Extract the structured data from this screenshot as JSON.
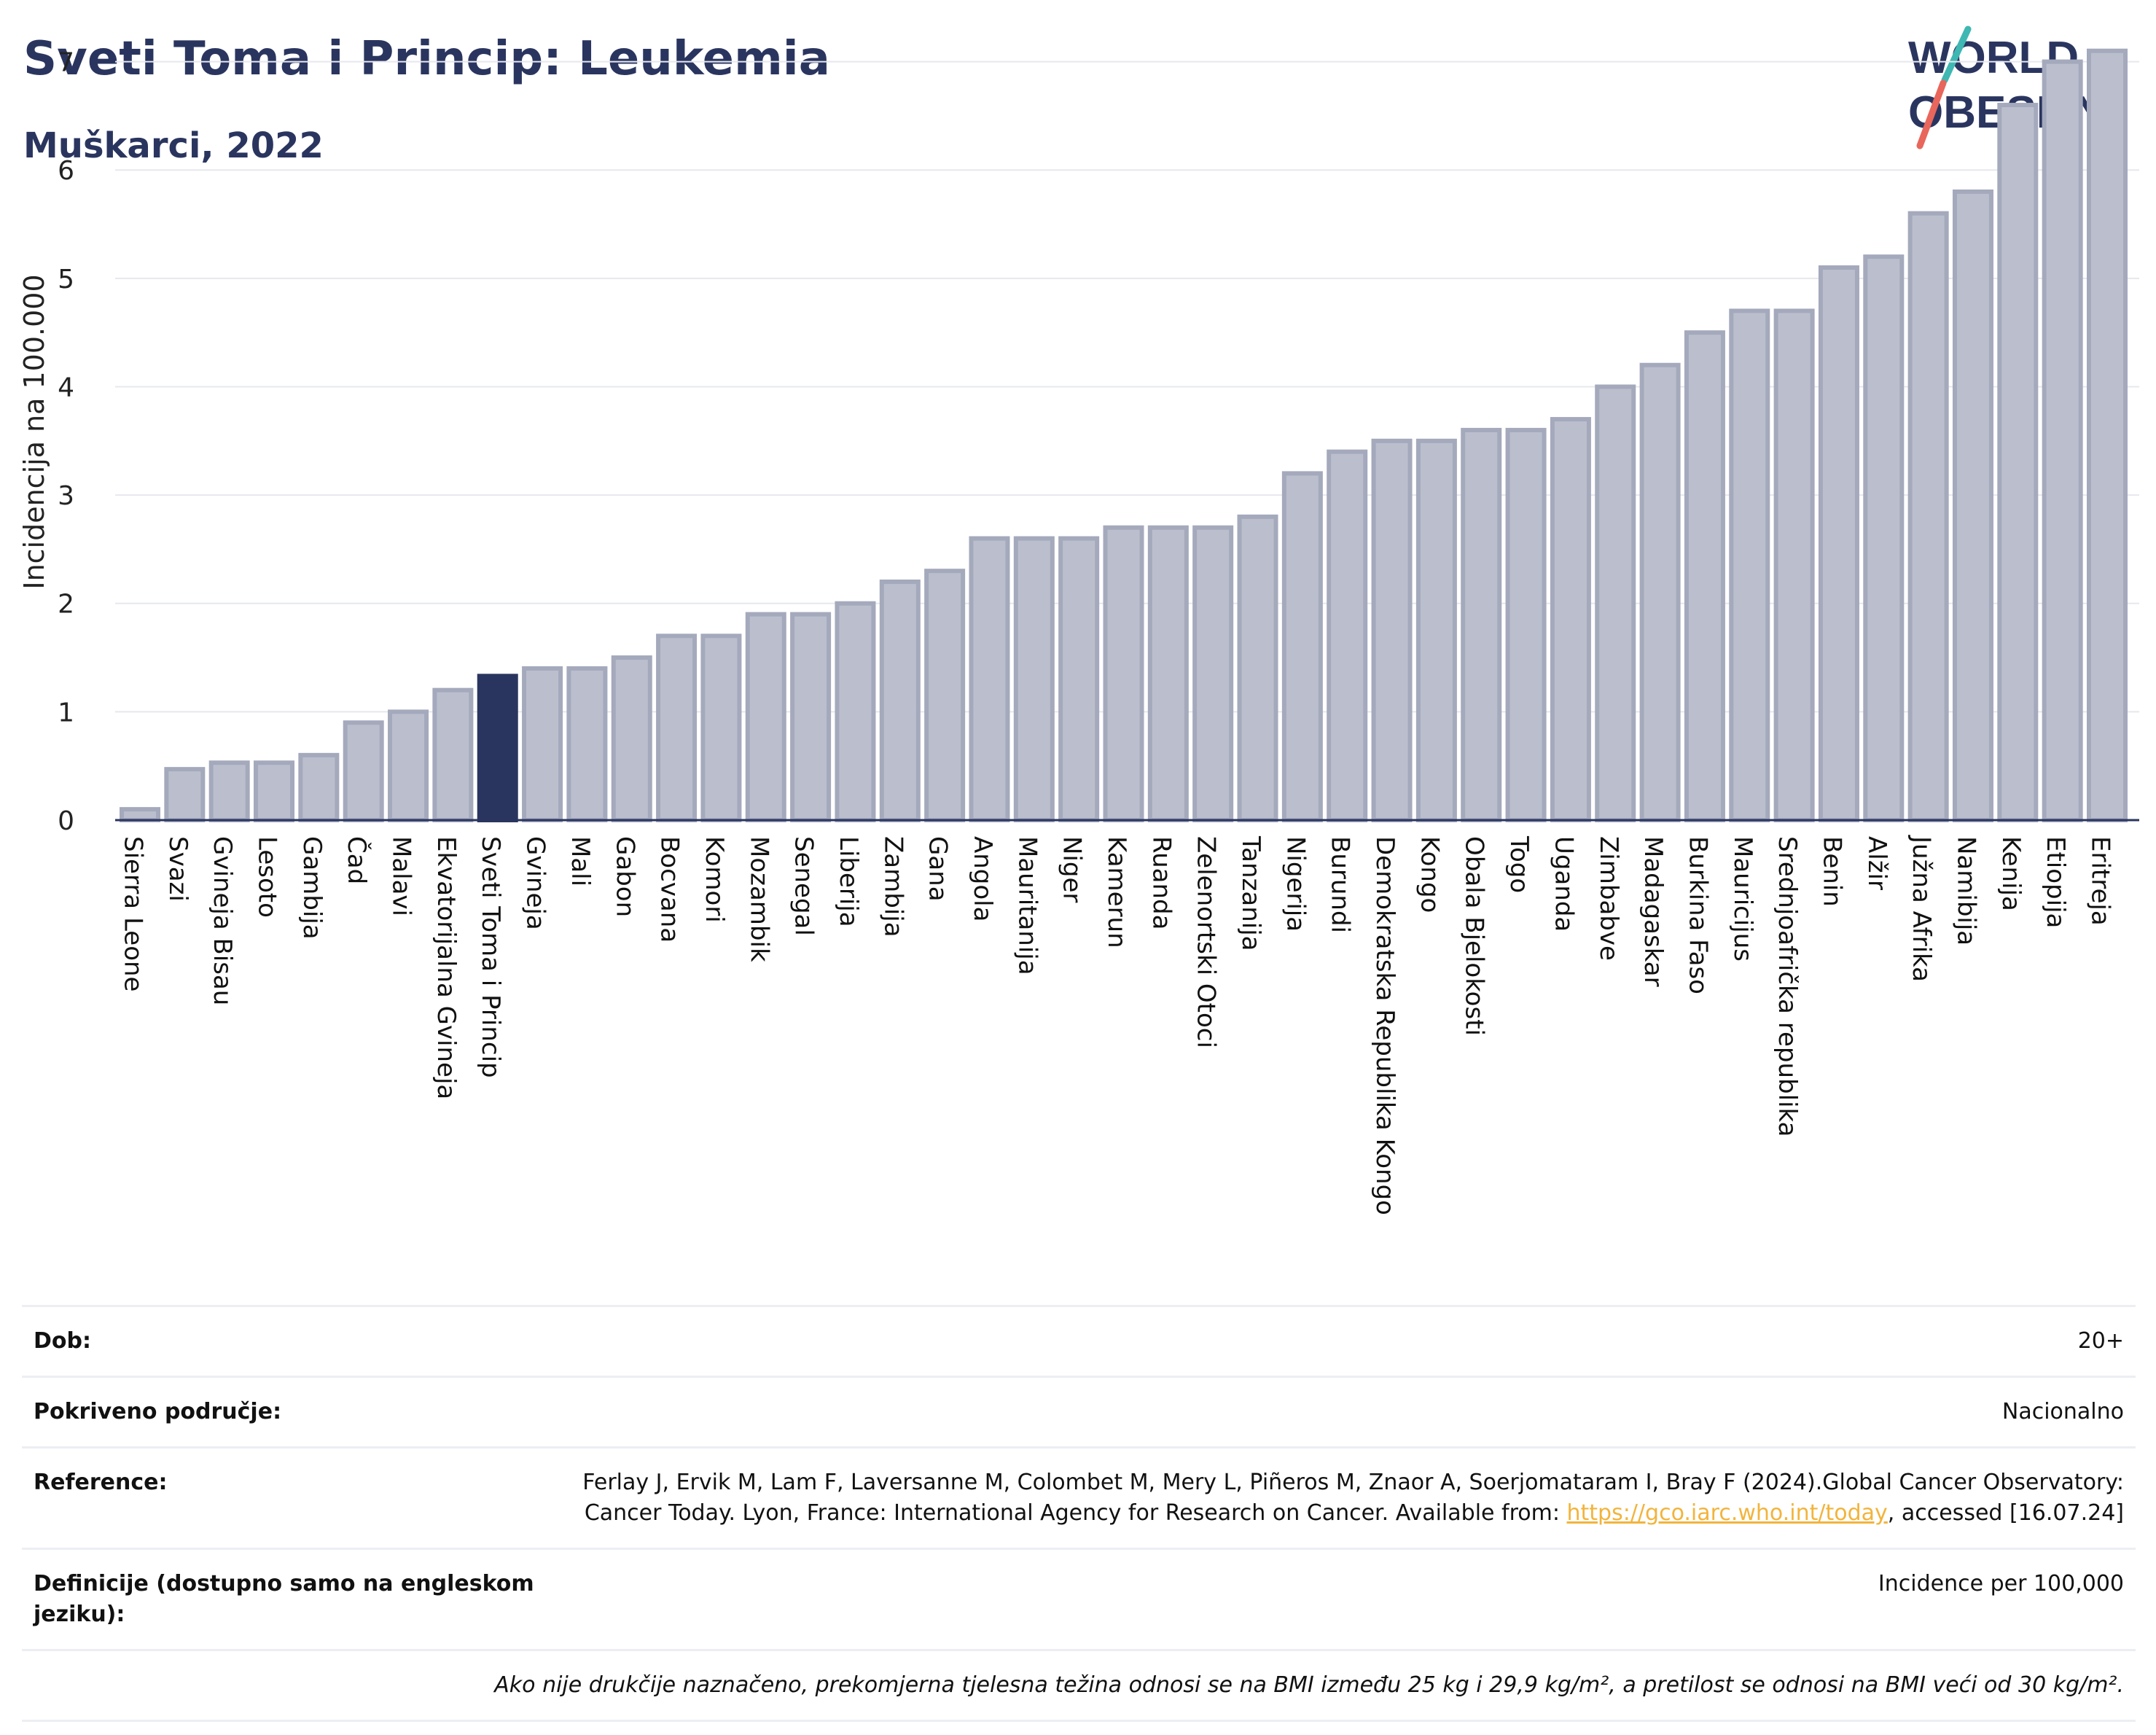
{
  "header": {
    "title": "Sveti Toma i Princip: Leukemia",
    "subtitle": "Muškarci, 2022"
  },
  "logo": {
    "line1": "WORLD",
    "line2": "OBESITY"
  },
  "colors": {
    "title": "#2a355f",
    "bar_default": "#bbbfcd",
    "bar_border": "#a4a9bc",
    "bar_highlight": "#2a355f",
    "logo_slash_teal": "#3fb7b2",
    "logo_slash_red": "#e8665b",
    "link": "#f2b43c"
  },
  "chart_data": {
    "type": "bar",
    "title": "",
    "xlabel": "",
    "ylabel": "Incidencija na 100.000",
    "ylim": [
      0,
      7.3
    ],
    "yticks": [
      0,
      1,
      2,
      3,
      4,
      5,
      6,
      7
    ],
    "grid": true,
    "highlight": "Sveti Toma i Princip",
    "categories": [
      "Sierra Leone",
      "Svazi",
      "Gvineja Bisau",
      "Lesoto",
      "Gambija",
      "Čad",
      "Malavi",
      "Ekvatorijalna Gvineja",
      "Sveti Toma i Princip",
      "Gvineja",
      "Mali",
      "Gabon",
      "Bocvana",
      "Komori",
      "Mozambik",
      "Senegal",
      "Liberija",
      "Zambija",
      "Gana",
      "Angola",
      "Mauritanija",
      "Niger",
      "Kamerun",
      "Ruanda",
      "Zelenortski Otoci",
      "Tanzanija",
      "Nigerija",
      "Burundi",
      "Demokratska Republika Kongo",
      "Kongo",
      "Obala Bjelokosti",
      "Togo",
      "Uganda",
      "Zimbabve",
      "Madagaskar",
      "Burkina Faso",
      "Mauricijus",
      "Srednjoafrička republika",
      "Benin",
      "Alžir",
      "Južna Afrika",
      "Namibija",
      "Kenija",
      "Etiopija",
      "Eritreja"
    ],
    "values": [
      0.1,
      0.47,
      0.53,
      0.53,
      0.6,
      0.9,
      1.0,
      1.2,
      1.33,
      1.4,
      1.4,
      1.5,
      1.7,
      1.7,
      1.9,
      1.9,
      2.0,
      2.2,
      2.3,
      2.6,
      2.6,
      2.6,
      2.7,
      2.7,
      2.7,
      2.8,
      3.2,
      3.4,
      3.5,
      3.5,
      3.6,
      3.6,
      3.7,
      4.0,
      4.2,
      4.5,
      4.7,
      4.7,
      5.1,
      5.2,
      5.6,
      5.8,
      6.6,
      7.0,
      7.1
    ]
  },
  "info": {
    "rows": [
      {
        "key": "Dob:",
        "value": "20+"
      },
      {
        "key": "Pokriveno područje:",
        "value": "Nacionalno"
      },
      {
        "key": "Reference:",
        "value": "Ferlay J, Ervik M, Lam F, Laversanne M, Colombet M, Mery L, Piñeros M, Znaor A, Soerjomataram I, Bray F (2024).Global Cancer Observatory: Cancer Today. Lyon, France: International Agency for Research on Cancer. Available from:",
        "link": "https://gco.iarc.who.int/today",
        "suffix": ", accessed [16.07.24]"
      },
      {
        "key": "Definicije (dostupno samo na engleskom jeziku):",
        "value": "Incidence per 100,000"
      }
    ],
    "note": "Ako nije drukčije naznačeno, prekomjerna tjelesna težina odnosi se na BMI između 25 kg i 29,9 kg/m², a pretilost se odnosi na BMI veći od 30 kg/m²."
  }
}
